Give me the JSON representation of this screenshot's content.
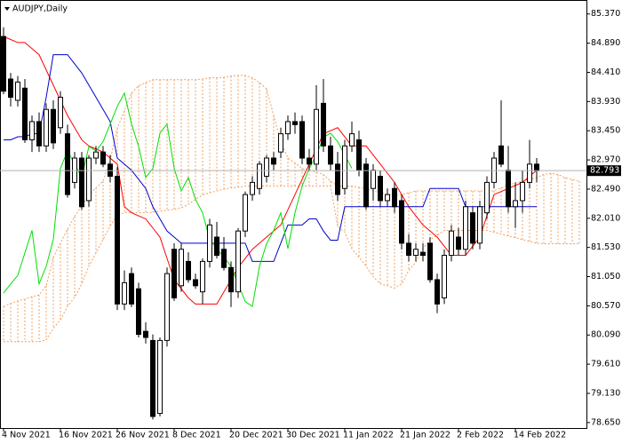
{
  "chart_data": {
    "type": "candlestick",
    "title": "AUDJPY,Daily",
    "categories": [
      "4 Nov 2021",
      null,
      null,
      null,
      null,
      null,
      null,
      null,
      "16 Nov 2021",
      null,
      null,
      null,
      null,
      null,
      null,
      null,
      "26 Nov 2021",
      null,
      null,
      null,
      null,
      null,
      null,
      null,
      "8 Dec 2021",
      null,
      null,
      null,
      null,
      null,
      null,
      null,
      "20 Dec 2021",
      null,
      null,
      null,
      null,
      null,
      null,
      null,
      "30 Dec 2021",
      null,
      null,
      null,
      null,
      null,
      null,
      null,
      "11 Jan 2022",
      null,
      null,
      null,
      null,
      null,
      null,
      null,
      "21 Jan 2022",
      null,
      null,
      null,
      null,
      null,
      null,
      null,
      "2 Feb 2022",
      null,
      null,
      null,
      null,
      null,
      null,
      null,
      "14 Feb 2022",
      null,
      null,
      null,
      null,
      null,
      null,
      null,
      null,
      null
    ],
    "ylim": [
      78.56,
      85.6
    ],
    "yticks": [
      {
        "value": 85.37,
        "label": "85.370"
      },
      {
        "value": 84.89,
        "label": "84.890"
      },
      {
        "value": 84.41,
        "label": "84.410"
      },
      {
        "value": 83.93,
        "label": "83.930"
      },
      {
        "value": 83.45,
        "label": "83.450"
      },
      {
        "value": 82.97,
        "label": "82.970"
      },
      {
        "value": 82.49,
        "label": "82.490"
      },
      {
        "value": 82.01,
        "label": "82.010"
      },
      {
        "value": 81.53,
        "label": "81.530"
      },
      {
        "value": 81.05,
        "label": "81.050"
      },
      {
        "value": 80.57,
        "label": "80.570"
      },
      {
        "value": 80.09,
        "label": "80.090"
      },
      {
        "value": 79.61,
        "label": "79.610"
      },
      {
        "value": 79.13,
        "label": "79.130"
      },
      {
        "value": 78.65,
        "label": "78.650"
      }
    ],
    "last_price": 82.793,
    "ohlc": {
      "up_color": "#ffffff",
      "down_color": "#000000",
      "open": [
        85.0,
        84.3,
        83.95,
        84.15,
        83.3,
        83.6,
        83.2,
        83.8,
        83.5,
        83.4,
        82.6,
        83.0,
        82.3,
        83.0,
        83.1,
        82.9,
        82.7,
        80.6,
        81.1,
        80.85,
        80.15,
        80.0,
        78.8,
        80.0,
        81.5,
        80.9,
        81.3,
        81.0,
        80.8,
        81.3,
        81.7,
        81.5,
        81.2,
        80.8,
        81.8,
        82.4,
        82.5,
        82.7,
        83.0,
        83.1,
        83.4,
        83.6,
        83.6,
        83.0,
        82.9,
        83.9,
        83.2,
        82.9,
        82.5,
        83.2,
        83.3,
        82.9,
        82.5,
        82.7,
        82.3,
        82.5,
        82.3,
        81.6,
        81.4,
        81.45,
        81.6,
        81.0,
        80.7,
        81.4,
        81.7,
        81.5,
        82.1,
        81.6,
        82.1,
        82.6,
        83.2,
        82.8,
        82.2,
        82.3,
        82.6,
        82.9,
        null,
        null,
        null,
        null,
        null,
        null
      ],
      "high": [
        85.15,
        84.4,
        84.35,
        84.3,
        83.7,
        83.75,
        83.9,
        83.95,
        84.1,
        83.55,
        83.1,
        83.1,
        83.05,
        83.2,
        83.2,
        83.05,
        82.85,
        81.15,
        81.2,
        80.95,
        80.3,
        80.1,
        80.05,
        81.2,
        81.6,
        81.6,
        81.45,
        81.1,
        81.35,
        82.0,
        81.95,
        81.7,
        81.3,
        81.85,
        82.45,
        82.7,
        82.95,
        83.05,
        83.1,
        83.5,
        83.7,
        83.75,
        83.7,
        83.15,
        84.2,
        84.3,
        83.35,
        83.1,
        83.3,
        83.6,
        83.45,
        83.0,
        82.9,
        82.8,
        82.5,
        82.6,
        82.4,
        81.75,
        81.6,
        81.6,
        81.7,
        81.1,
        81.5,
        81.9,
        81.85,
        82.3,
        82.2,
        82.3,
        82.7,
        83.1,
        83.95,
        83.2,
        82.6,
        82.8,
        83.3,
        83.0,
        null,
        null,
        null,
        null,
        null,
        null
      ],
      "low": [
        84.05,
        83.85,
        83.85,
        83.25,
        83.1,
        83.1,
        83.1,
        83.15,
        83.4,
        82.35,
        82.5,
        82.15,
        82.2,
        82.9,
        82.85,
        82.6,
        80.5,
        80.5,
        80.55,
        80.05,
        79.95,
        78.7,
        78.75,
        79.9,
        80.65,
        80.8,
        80.95,
        80.85,
        80.6,
        81.2,
        81.35,
        81.15,
        80.55,
        80.7,
        81.7,
        82.3,
        82.4,
        82.6,
        82.8,
        83.0,
        83.3,
        83.4,
        82.9,
        82.8,
        82.8,
        83.1,
        82.8,
        82.3,
        82.4,
        83.1,
        82.7,
        82.15,
        82.3,
        82.2,
        82.2,
        82.1,
        81.5,
        81.3,
        81.3,
        81.3,
        80.95,
        80.45,
        80.6,
        81.3,
        81.4,
        81.4,
        81.5,
        81.5,
        82.0,
        82.5,
        82.85,
        82.1,
        81.85,
        82.1,
        82.5,
        82.6,
        null,
        null,
        null,
        null,
        null,
        null
      ],
      "close": [
        84.1,
        84.0,
        84.25,
        83.3,
        83.6,
        83.2,
        83.8,
        83.25,
        84.0,
        82.4,
        83.0,
        82.2,
        83.0,
        83.1,
        82.9,
        82.7,
        80.6,
        80.95,
        80.6,
        80.1,
        80.05,
        78.75,
        80.0,
        81.1,
        80.7,
        81.5,
        81.0,
        80.9,
        81.3,
        81.9,
        81.4,
        81.2,
        80.8,
        81.8,
        82.4,
        82.6,
        82.9,
        83.0,
        82.9,
        83.4,
        83.6,
        83.55,
        83.0,
        82.9,
        83.8,
        83.2,
        82.9,
        82.4,
        83.2,
        83.4,
        82.8,
        82.2,
        82.8,
        82.3,
        82.4,
        82.2,
        81.6,
        81.4,
        81.5,
        81.4,
        81.0,
        80.6,
        81.4,
        81.8,
        81.5,
        82.2,
        81.6,
        82.2,
        82.6,
        83.0,
        82.9,
        82.2,
        82.3,
        82.6,
        82.9,
        82.793,
        null,
        null,
        null,
        null,
        null,
        null
      ]
    },
    "lines": [
      {
        "color": "#ff0000",
        "values": [
          85.0,
          84.95,
          84.9,
          84.9,
          84.8,
          84.7,
          84.45,
          84.2,
          83.95,
          83.7,
          83.5,
          83.3,
          83.2,
          83.15,
          83.1,
          83.0,
          82.9,
          82.2,
          82.1,
          82.05,
          82.0,
          81.85,
          81.7,
          81.35,
          81.0,
          80.85,
          80.7,
          80.6,
          80.6,
          80.6,
          80.6,
          80.8,
          81.0,
          81.2,
          81.35,
          81.5,
          81.6,
          81.7,
          81.8,
          81.9,
          82.15,
          82.4,
          82.65,
          82.9,
          83.15,
          83.4,
          83.45,
          83.5,
          83.35,
          83.2,
          83.2,
          83.2,
          83.05,
          82.9,
          82.75,
          82.6,
          82.4,
          82.2,
          82.05,
          81.9,
          81.8,
          81.7,
          81.55,
          81.4,
          81.4,
          81.4,
          81.55,
          81.7,
          82.05,
          82.4,
          82.45,
          82.5,
          82.55,
          82.6,
          82.7,
          82.8,
          null,
          null,
          null,
          null,
          null,
          null
        ]
      },
      {
        "color": "#0000cc",
        "values": [
          83.3,
          83.3,
          83.35,
          83.35,
          83.4,
          83.4,
          84.0,
          84.7,
          84.7,
          84.7,
          84.55,
          84.4,
          84.2,
          84.0,
          83.8,
          83.6,
          83.0,
          82.9,
          82.8,
          82.65,
          82.5,
          82.2,
          82.0,
          81.8,
          81.7,
          81.6,
          81.6,
          81.6,
          81.6,
          81.6,
          81.6,
          81.6,
          81.6,
          81.6,
          81.6,
          81.3,
          81.3,
          81.3,
          81.3,
          81.6,
          81.9,
          81.9,
          81.9,
          82.0,
          82.0,
          81.8,
          81.65,
          81.65,
          82.2,
          82.2,
          82.2,
          82.2,
          82.2,
          82.2,
          82.2,
          82.2,
          82.2,
          82.2,
          82.2,
          82.2,
          82.5,
          82.5,
          82.5,
          82.5,
          82.5,
          82.2,
          82.2,
          82.2,
          82.2,
          82.2,
          82.2,
          82.2,
          82.2,
          82.2,
          82.2,
          82.2,
          null,
          null,
          null,
          null,
          null,
          null
        ]
      },
      {
        "color": "#00e000",
        "values": [
          80.78,
          80.93,
          81.07,
          81.44,
          81.81,
          80.93,
          81.22,
          81.66,
          82.83,
          83.12,
          82.9,
          82.68,
          83.19,
          83.12,
          83.27,
          83.56,
          83.85,
          84.07,
          83.56,
          83.19,
          82.68,
          82.83,
          83.41,
          83.56,
          82.83,
          82.46,
          82.68,
          82.32,
          82.1,
          81.66,
          81.51,
          81.37,
          81.22,
          80.93,
          80.64,
          80.56,
          81.22,
          81.59,
          81.81,
          82.1,
          81.51,
          82.1,
          82.54,
          82.83,
          83.05,
          83.34,
          83.41,
          83.27,
          83.05,
          82.83,
          null,
          null,
          null,
          null,
          null,
          null,
          null,
          null,
          null,
          null,
          null,
          null,
          null,
          null,
          null,
          null,
          null,
          null,
          null,
          null,
          null,
          null,
          null,
          null,
          null,
          null,
          null,
          null,
          null,
          null,
          null,
          null
        ]
      }
    ],
    "cloud": {
      "color": "#f0a060",
      "span_a": [
        80.56,
        80.61,
        80.65,
        80.68,
        80.72,
        80.75,
        80.9,
        81.37,
        81.6,
        81.83,
        82.04,
        82.21,
        82.39,
        82.51,
        82.62,
        82.97,
        83.49,
        83.78,
        84.07,
        84.19,
        84.24,
        84.29,
        84.29,
        84.29,
        84.29,
        84.29,
        84.29,
        84.29,
        84.3,
        84.32,
        84.32,
        84.33,
        84.35,
        84.36,
        84.36,
        84.32,
        84.24,
        84.14,
        83.7,
        83.27,
        83.0,
        82.92,
        82.83,
        82.8,
        82.77,
        82.73,
        82.62,
        82.54,
        82.54,
        82.54,
        82.52,
        82.49,
        82.46,
        82.43,
        82.4,
        82.39,
        82.4,
        82.43,
        82.46,
        82.46,
        82.46,
        82.46,
        82.46,
        82.46,
        82.46,
        82.46,
        82.46,
        82.46,
        82.46,
        82.46,
        82.51,
        82.56,
        82.59,
        82.62,
        82.65,
        82.68,
        82.73,
        82.75,
        82.73,
        82.68,
        82.65,
        82.62
      ],
      "span_b": [
        79.98,
        79.98,
        79.98,
        79.98,
        79.98,
        79.98,
        80.01,
        80.2,
        80.34,
        80.56,
        80.71,
        80.93,
        81.22,
        81.44,
        81.66,
        81.88,
        82.07,
        82.1,
        82.1,
        82.1,
        82.1,
        82.11,
        82.13,
        82.14,
        82.16,
        82.18,
        82.24,
        82.32,
        82.39,
        82.43,
        82.46,
        82.49,
        82.51,
        82.52,
        82.54,
        82.54,
        82.54,
        82.54,
        82.54,
        82.54,
        82.54,
        82.54,
        82.54,
        82.54,
        82.54,
        82.54,
        82.54,
        81.88,
        81.78,
        81.51,
        81.37,
        81.22,
        81.05,
        80.93,
        80.9,
        80.86,
        80.93,
        81.15,
        81.29,
        81.51,
        81.66,
        81.73,
        81.81,
        81.81,
        81.81,
        81.81,
        81.81,
        81.81,
        81.81,
        81.78,
        81.75,
        81.72,
        81.69,
        81.66,
        81.63,
        81.6,
        81.59,
        81.59,
        81.59,
        81.59,
        81.59,
        81.59
      ]
    }
  }
}
